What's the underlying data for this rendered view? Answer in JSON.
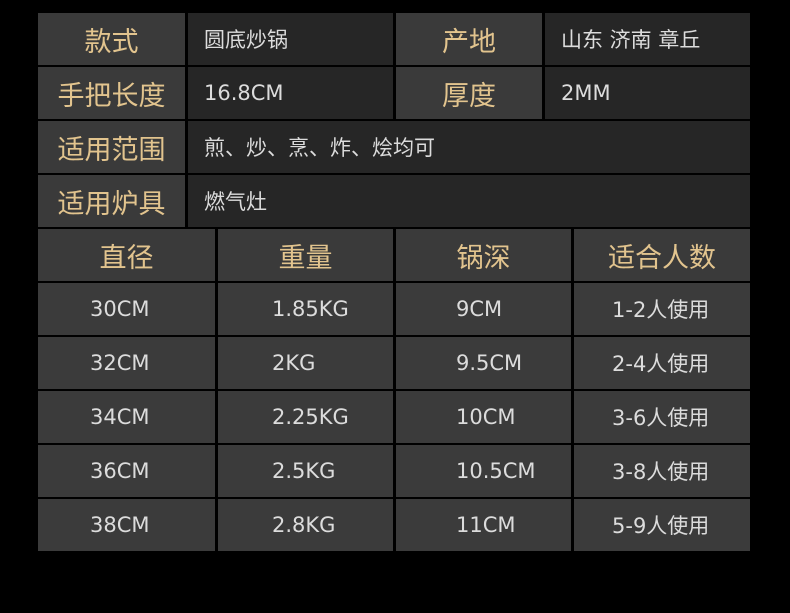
{
  "specs": {
    "style_label": "款式",
    "style_value": "圆底炒锅",
    "origin_label": "产地",
    "origin_value": "山东 济南 章丘",
    "handle_label": "手把长度",
    "handle_value": "16.8CM",
    "thickness_label": "厚度",
    "thickness_value": "2MM",
    "usage_label": "适用范围",
    "usage_value": "煎、炒、烹、炸、烩均可",
    "stove_label": "适用炉具",
    "stove_value": "燃气灶"
  },
  "size_table": {
    "headers": [
      "直径",
      "重量",
      "锅深",
      "适合人数"
    ],
    "rows": [
      [
        "30CM",
        "1.85KG",
        "9CM",
        "1-2人使用"
      ],
      [
        "32CM",
        "2KG",
        "9.5CM",
        "2-4人使用"
      ],
      [
        "34CM",
        "2.25KG",
        "10CM",
        "3-6人使用"
      ],
      [
        "36CM",
        "2.5KG",
        "10.5CM",
        "3-8人使用"
      ],
      [
        "38CM",
        "2.8KG",
        "11CM",
        "5-9人使用"
      ]
    ]
  },
  "colors": {
    "label_gold": "#e2c48e",
    "value_text": "#dcdcdc",
    "cell_dark": "#262626",
    "cell_light": "#3a3a3a"
  }
}
